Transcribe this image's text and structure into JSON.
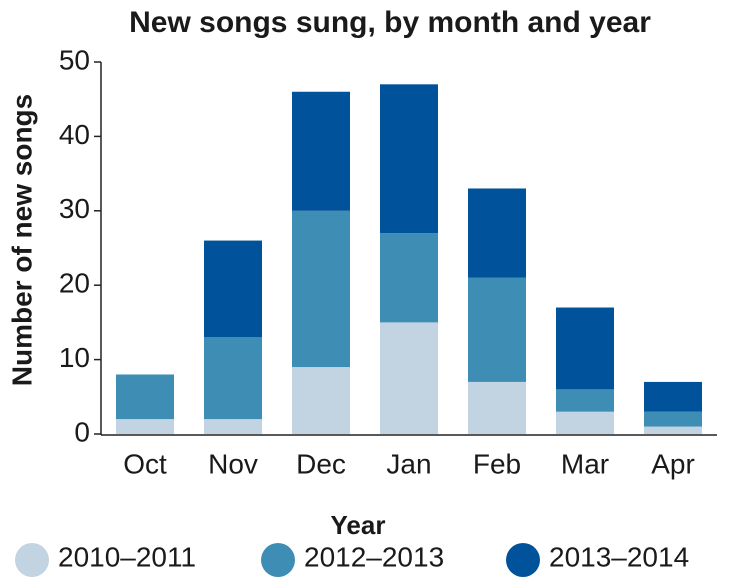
{
  "chart_data": {
    "type": "stacked_bar",
    "title": "New songs sung, by month and year",
    "y_label": "Number of new songs",
    "legend_title": "Year",
    "categories": [
      "Oct",
      "Nov",
      "Dec",
      "Jan",
      "Feb",
      "Mar",
      "Apr"
    ],
    "series": [
      {
        "name": "2010–2011",
        "color": "#c2d4e1",
        "values": [
          2,
          2,
          9,
          15,
          7,
          3,
          1
        ]
      },
      {
        "name": "2012–2013",
        "color": "#3d8db5",
        "values": [
          6,
          11,
          21,
          12,
          14,
          3,
          2
        ]
      },
      {
        "name": "2013–2014",
        "color": "#00529b",
        "values": [
          0,
          13,
          16,
          20,
          12,
          11,
          4
        ]
      }
    ],
    "ylim": [
      0,
      50
    ],
    "yticks": [
      0,
      10,
      20,
      30,
      40,
      50
    ],
    "grid": false,
    "legend_position": "bottom"
  }
}
